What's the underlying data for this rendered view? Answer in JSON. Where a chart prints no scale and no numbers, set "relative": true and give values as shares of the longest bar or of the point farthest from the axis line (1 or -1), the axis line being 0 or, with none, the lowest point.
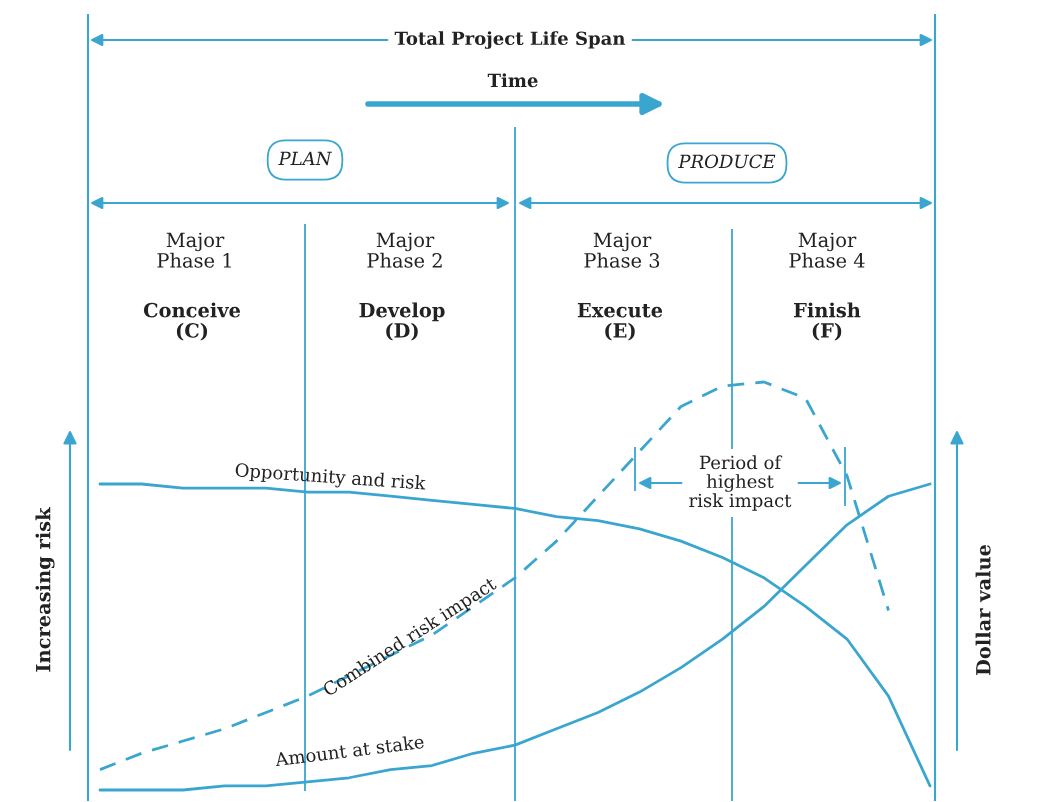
{
  "chart_data": {
    "type": "line",
    "relative": true,
    "ylabel": "Increasing risk",
    "y2label": "Dollar value",
    "categories": [
      null,
      null,
      null,
      null,
      null,
      null,
      null,
      null,
      null,
      null,
      null,
      null,
      null,
      null,
      null,
      null,
      null,
      null,
      null,
      null,
      null
    ],
    "series": [
      {
        "name": "Opportunity and risk",
        "color": "#3aa6d0",
        "line_style": "solid",
        "values": [
          0.75,
          0.75,
          0.74,
          0.74,
          0.74,
          0.73,
          0.73,
          0.72,
          0.71,
          0.7,
          0.69,
          0.67,
          0.66,
          0.64,
          0.61,
          0.57,
          0.52,
          0.45,
          0.37,
          0.23,
          0.01
        ]
      },
      {
        "name": "Combined risk impact",
        "color": "#3aa6d0",
        "line_style": "dashed",
        "values": [
          0.05,
          0.09,
          0.12,
          0.15,
          0.19,
          0.23,
          0.28,
          0.33,
          0.38,
          0.45,
          0.52,
          0.61,
          0.72,
          0.83,
          0.94,
          0.99,
          1.0,
          0.96,
          0.77,
          0.44,
          null
        ]
      },
      {
        "name": "Amount at stake",
        "color": "#3aa6d0",
        "line_style": "solid",
        "values": [
          0.0,
          0.0,
          0.0,
          0.01,
          0.01,
          0.02,
          0.03,
          0.05,
          0.06,
          0.09,
          0.11,
          0.15,
          0.19,
          0.24,
          0.3,
          0.37,
          0.45,
          0.55,
          0.65,
          0.72,
          0.75
        ]
      }
    ],
    "annotations": [
      "Total Project Life Span",
      "Time",
      "PLAN",
      "PRODUCE",
      "Major\nPhase 1",
      "Major\nPhase 2",
      "Major\nPhase 3",
      "Major\nPhase 4",
      "Conceive\n(C)",
      "Develop\n(D)",
      "Execute\n(E)",
      "Finish\n(F)",
      "Period of\nhighest\nrisk impact"
    ]
  }
}
